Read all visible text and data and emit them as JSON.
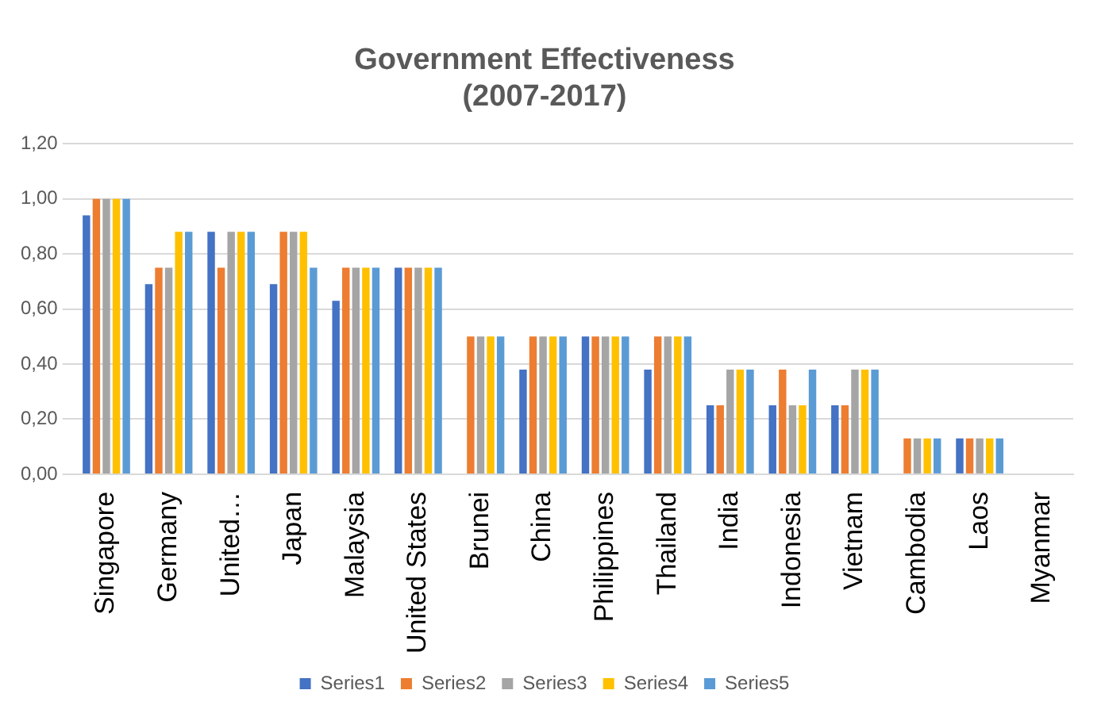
{
  "chart_data": {
    "type": "bar",
    "title": [
      "Government Effectiveness",
      "(2007-2017)"
    ],
    "categories": [
      "Singapore",
      "Germany",
      "United…",
      "Japan",
      "Malaysia",
      "United States",
      "Brunei",
      "China",
      "Philippines",
      "Thailand",
      "India",
      "Indonesia",
      "Vietnam",
      "Cambodia",
      "Laos",
      "Myanmar"
    ],
    "series": [
      {
        "name": "Series1",
        "color": "#4472c4",
        "values": [
          0.94,
          0.69,
          0.88,
          0.69,
          0.63,
          0.75,
          null,
          0.38,
          0.5,
          0.38,
          0.25,
          0.25,
          0.25,
          null,
          0.13,
          null
        ]
      },
      {
        "name": "Series2",
        "color": "#ed7d31",
        "values": [
          1,
          0.75,
          0.75,
          0.88,
          0.75,
          0.75,
          0.5,
          0.5,
          0.5,
          0.5,
          0.25,
          0.38,
          0.25,
          0.13,
          0.13,
          null
        ]
      },
      {
        "name": "Series3",
        "color": "#a5a5a5",
        "values": [
          1,
          0.75,
          0.88,
          0.88,
          0.75,
          0.75,
          0.5,
          0.5,
          0.5,
          0.5,
          0.38,
          0.25,
          0.38,
          0.13,
          0.13,
          null
        ]
      },
      {
        "name": "Series4",
        "color": "#ffc000",
        "values": [
          1,
          0.88,
          0.88,
          0.88,
          0.75,
          0.75,
          0.5,
          0.5,
          0.5,
          0.5,
          0.38,
          0.25,
          0.38,
          0.13,
          0.13,
          null
        ]
      },
      {
        "name": "Series5",
        "color": "#5b9bd5",
        "values": [
          1,
          0.88,
          0.88,
          0.75,
          0.75,
          0.75,
          0.5,
          0.5,
          0.5,
          0.5,
          0.38,
          0.38,
          0.38,
          0.13,
          0.13,
          null
        ]
      }
    ],
    "ylim": [
      0,
      1.2
    ],
    "yticks": [
      {
        "value": 0,
        "label": "0,00"
      },
      {
        "value": 0.2,
        "label": "0,20"
      },
      {
        "value": 0.4,
        "label": "0,40"
      },
      {
        "value": 0.6,
        "label": "0,60"
      },
      {
        "value": 0.8,
        "label": "0,80"
      },
      {
        "value": 1,
        "label": "1,00"
      },
      {
        "value": 1.2,
        "label": "1,20"
      }
    ],
    "grid": "y",
    "legend": "bottom"
  }
}
